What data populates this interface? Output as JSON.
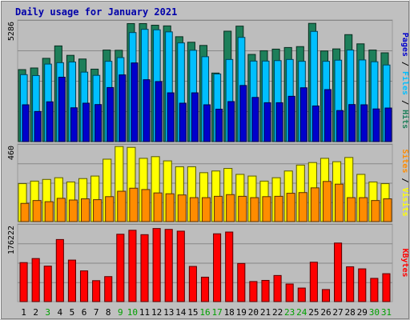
{
  "chart_data": {
    "type": "bar",
    "title": "Daily usage for January 2021",
    "categories": [
      "1",
      "2",
      "3",
      "4",
      "5",
      "6",
      "7",
      "8",
      "9",
      "10",
      "11",
      "12",
      "13",
      "14",
      "15",
      "16",
      "17",
      "18",
      "19",
      "20",
      "21",
      "22",
      "23",
      "24",
      "25",
      "26",
      "27",
      "28",
      "29",
      "30",
      "31"
    ],
    "weekend_days": [
      "3",
      "9",
      "10",
      "16",
      "17",
      "23",
      "24",
      "30",
      "31"
    ],
    "panels": [
      {
        "name": "hits-files-pages",
        "max_label": "5286",
        "ymax": 5286,
        "side_labels": [
          "Pages",
          "Files",
          "Hits"
        ],
        "series": [
          {
            "name": "Hits",
            "color": "#1d7f5a",
            "values": [
              3130,
              3200,
              3620,
              4160,
              3750,
              3590,
              3150,
              3980,
              3970,
              5130,
              5130,
              5060,
              5030,
              4560,
              4320,
              4180,
              2980,
              4800,
              5020,
              3790,
              3950,
              4020,
              4090,
              4130,
              5140,
              3940,
              4030,
              4650,
              4250,
              3980,
              3860
            ]
          },
          {
            "name": "Files",
            "color": "#00bfff",
            "values": [
              2910,
              2870,
              3370,
              3430,
              3460,
              3020,
              2880,
              3490,
              3650,
              4740,
              4880,
              4860,
              4770,
              4290,
              3970,
              3690,
              2940,
              3570,
              4530,
              3500,
              3500,
              3520,
              3570,
              3490,
              4790,
              3490,
              3540,
              3980,
              3550,
              3470,
              3330
            ]
          },
          {
            "name": "Pages",
            "color": "#0000cc",
            "values": [
              1600,
              1310,
              1730,
              2800,
              1470,
              1670,
              1610,
              2350,
              2900,
              3420,
              2690,
              2610,
              2120,
              1670,
              2120,
              1600,
              1410,
              1740,
              2440,
              1920,
              1690,
              1690,
              1970,
              2340,
              1550,
              2260,
              1350,
              1610,
              1600,
              1420,
              1460
            ]
          }
        ]
      },
      {
        "name": "visits-sites",
        "max_label": "460",
        "ymax": 460,
        "side_labels": [
          "Sites",
          "Visits"
        ],
        "series": [
          {
            "name": "Visits",
            "color": "#ffff00",
            "values": [
              225,
              240,
              250,
              260,
              235,
              255,
              270,
              370,
              445,
              440,
              375,
              385,
              360,
              325,
              325,
              290,
              300,
              315,
              280,
              270,
              240,
              260,
              300,
              335,
              350,
              375,
              355,
              380,
              280,
              235,
              225
            ]
          },
          {
            "name": "Sites",
            "color": "#ff8c00",
            "values": [
              108,
              125,
              118,
              138,
              128,
              135,
              130,
              148,
              180,
              198,
              190,
              170,
              165,
              158,
              142,
              142,
              150,
              160,
              150,
              142,
              148,
              150,
              168,
              172,
              200,
              238,
              222,
              142,
              142,
              125,
              135
            ]
          }
        ]
      },
      {
        "name": "kbytes",
        "max_label": "176222",
        "ymax": 176222,
        "side_labels": [
          "KBytes"
        ],
        "series": [
          {
            "name": "KBytes",
            "color": "#ff0000",
            "values": [
              88600,
              97800,
              80600,
              141000,
              94300,
              69800,
              47600,
              56800,
              153000,
              162000,
              152000,
              166000,
              164000,
              160000,
              79900,
              55500,
              154000,
              158000,
              86600,
              45600,
              48200,
              59300,
              40000,
              30800,
              89500,
              27400,
              133000,
              79100,
              74400,
              52800,
              63400
            ]
          }
        ]
      }
    ]
  }
}
